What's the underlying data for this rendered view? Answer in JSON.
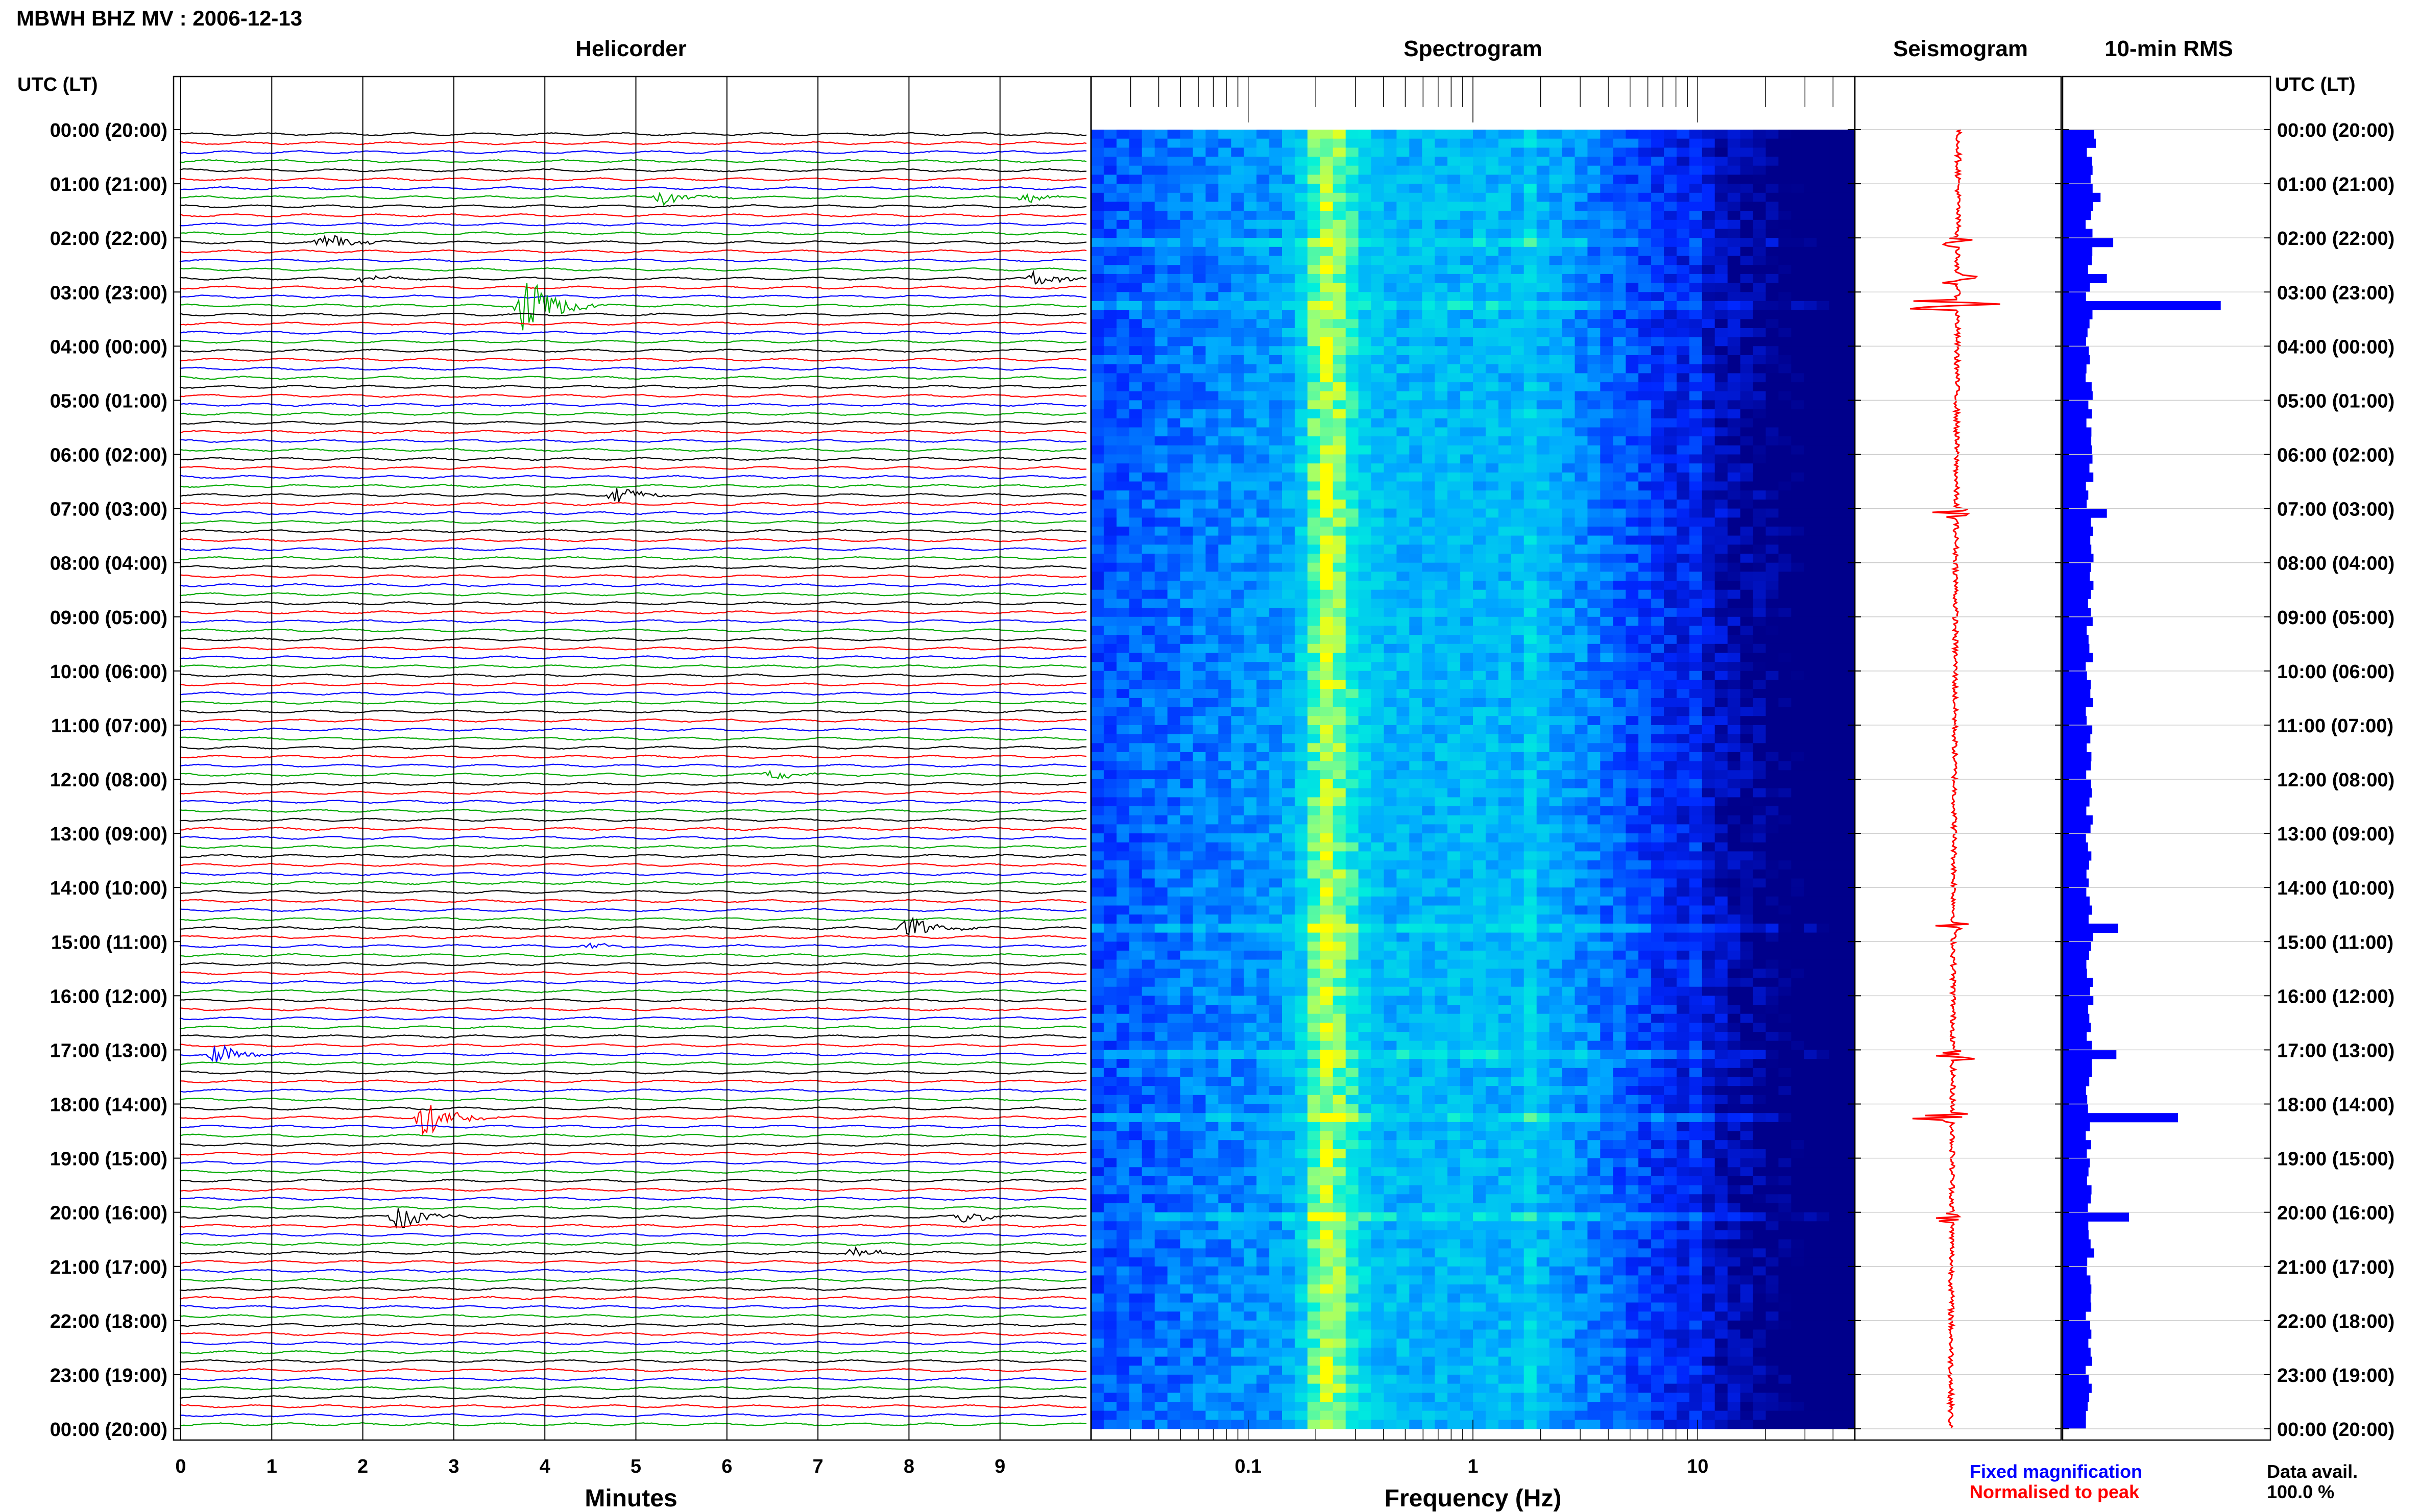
{
  "header": {
    "title": "MBWH BHZ MV : 2006-12-13",
    "utc_label_left": "UTC (LT)",
    "utc_label_right": "UTC (LT)"
  },
  "panels": {
    "helicorder_title": "Helicorder",
    "spectrogram_title": "Spectrogram",
    "seismogram_title": "Seismogram",
    "rms_title": "10-min RMS"
  },
  "footer": {
    "minutes_label": "Minutes",
    "frequency_label": "Frequency (Hz)",
    "legend_fixed": "Fixed magnification",
    "legend_normalised": "Normalised to peak",
    "data_avail_label": "Data avail.",
    "data_avail_value": "100.0 %"
  },
  "colors": {
    "fixed_magnification": "#0000ff",
    "normalised_to_peak": "#ff0000",
    "rms_bars": "#0000ff",
    "trace_cycle": [
      "#000000",
      "#ff0000",
      "#0000ff",
      "#00aa00"
    ],
    "spectrogram_low": "#00008b",
    "spectrogram_high": "#ffff00"
  },
  "chart_data": [
    {
      "type": "line",
      "name": "helicorder",
      "title": "Helicorder",
      "xlabel": "Minutes",
      "xlim": [
        0,
        10
      ],
      "x_ticks": [
        "0",
        "1",
        "2",
        "3",
        "4",
        "5",
        "6",
        "7",
        "8",
        "9"
      ],
      "y_tick_labels": [
        "00:00 (20:00)",
        "01:00 (21:00)",
        "02:00 (22:00)",
        "03:00 (23:00)",
        "04:00 (00:00)",
        "05:00 (01:00)",
        "06:00 (02:00)",
        "07:00 (03:00)",
        "08:00 (04:00)",
        "09:00 (05:00)",
        "10:00 (06:00)",
        "11:00 (07:00)",
        "12:00 (08:00)",
        "13:00 (09:00)",
        "14:00 (10:00)",
        "15:00 (11:00)",
        "16:00 (12:00)",
        "17:00 (13:00)",
        "18:00 (14:00)",
        "19:00 (15:00)",
        "20:00 (16:00)",
        "21:00 (17:00)",
        "22:00 (18:00)",
        "23:00 (19:00)",
        "00:00 (20:00)"
      ],
      "rows": 144,
      "row_minutes": 10,
      "events": [
        {
          "start_utc": "01:10",
          "minute": 5.3,
          "amplitude": 0.6
        },
        {
          "start_utc": "01:10",
          "minute": 9.3,
          "amplitude": 0.4
        },
        {
          "start_utc": "02:00",
          "minute": 1.6,
          "amplitude": 0.9
        },
        {
          "start_utc": "02:40",
          "minute": 2.0,
          "amplitude": 0.35
        },
        {
          "start_utc": "02:40",
          "minute": 9.4,
          "amplitude": 0.7
        },
        {
          "start_utc": "03:10",
          "minute": 3.8,
          "amplitude": 3.2
        },
        {
          "start_utc": "06:40",
          "minute": 4.8,
          "amplitude": 0.7
        },
        {
          "start_utc": "11:50",
          "minute": 6.5,
          "amplitude": 0.4
        },
        {
          "start_utc": "14:40",
          "minute": 8.0,
          "amplitude": 1.0
        },
        {
          "start_utc": "15:00",
          "minute": 4.5,
          "amplitude": 0.3
        },
        {
          "start_utc": "17:00",
          "minute": 0.4,
          "amplitude": 1.0
        },
        {
          "start_utc": "18:10",
          "minute": 2.7,
          "amplitude": 2.0
        },
        {
          "start_utc": "20:00",
          "minute": 2.4,
          "amplitude": 1.1
        },
        {
          "start_utc": "20:00",
          "minute": 8.6,
          "amplitude": 0.6
        },
        {
          "start_utc": "20:40",
          "minute": 7.4,
          "amplitude": 0.5
        }
      ]
    },
    {
      "type": "heatmap",
      "name": "spectrogram",
      "title": "Spectrogram",
      "xlabel": "Frequency (Hz)",
      "x_scale": "log",
      "xlim": [
        0.02,
        50
      ],
      "x_tick_labels": [
        "0.1",
        "1",
        "10"
      ],
      "peak_frequency_hz": 0.22,
      "high_frequency_lines_hz": [
        1.8,
        10
      ],
      "rows": 144
    },
    {
      "type": "line",
      "name": "seismogram",
      "title": "Seismogram",
      "legend": [
        "Fixed magnification",
        "Normalised to peak"
      ],
      "rows": 144
    },
    {
      "type": "bar",
      "name": "10-min RMS",
      "title": "10-min RMS",
      "orientation": "horizontal",
      "rows": 144,
      "baseline_value": 0.17,
      "xlim": [
        0,
        1
      ],
      "spikes": [
        {
          "start_utc": "00:00",
          "value": 0.2
        },
        {
          "start_utc": "00:10",
          "value": 0.21
        },
        {
          "start_utc": "01:00",
          "value": 0.19
        },
        {
          "start_utc": "01:10",
          "value": 0.24
        },
        {
          "start_utc": "02:00",
          "value": 0.32
        },
        {
          "start_utc": "02:40",
          "value": 0.28
        },
        {
          "start_utc": "03:10",
          "value": 1.0
        },
        {
          "start_utc": "07:00",
          "value": 0.28
        },
        {
          "start_utc": "14:40",
          "value": 0.35
        },
        {
          "start_utc": "17:00",
          "value": 0.34
        },
        {
          "start_utc": "18:10",
          "value": 0.73
        },
        {
          "start_utc": "20:00",
          "value": 0.42
        },
        {
          "start_utc": "20:40",
          "value": 0.2
        }
      ]
    }
  ]
}
